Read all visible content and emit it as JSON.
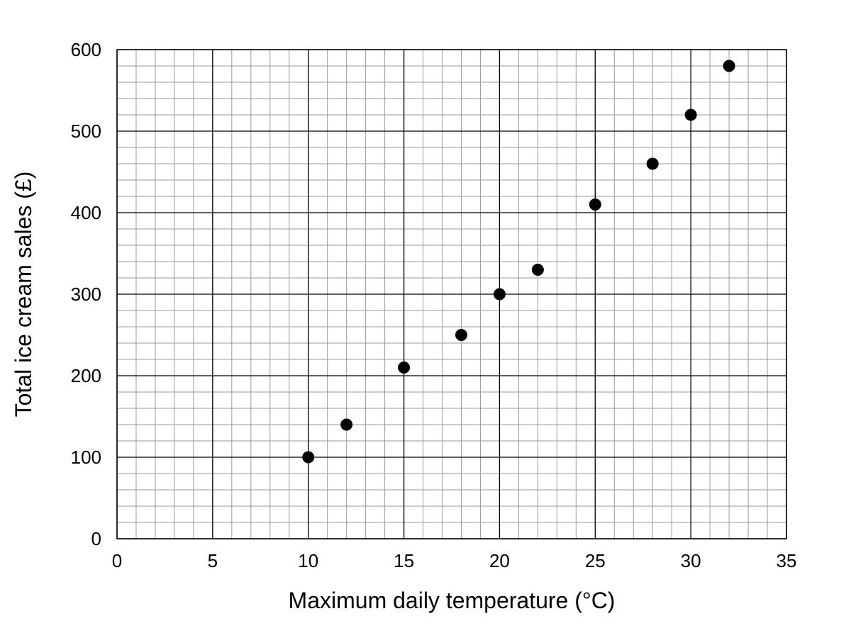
{
  "chart_data": {
    "type": "scatter",
    "title": "",
    "xlabel": "Maximum daily temperature (°C)",
    "ylabel": "Total ice cream sales (£)",
    "xlim": [
      0,
      35
    ],
    "ylim": [
      0,
      600
    ],
    "x_ticks": [
      0,
      5,
      10,
      15,
      20,
      25,
      30,
      35
    ],
    "y_ticks": [
      0,
      100,
      200,
      300,
      400,
      500,
      600
    ],
    "x_minor_step": 1,
    "y_minor_step": 20,
    "grid": true,
    "legend": "none",
    "series": [
      {
        "x": [
          10,
          12,
          15,
          18,
          20,
          22,
          25,
          28,
          30,
          32
        ],
        "y": [
          100,
          140,
          210,
          250,
          300,
          330,
          410,
          460,
          520,
          580
        ],
        "color": "#000000"
      }
    ]
  },
  "colors": {
    "major_grid": "#000000",
    "minor_grid": "#9a9a9a",
    "marker": "#000000",
    "background": "#ffffff"
  }
}
